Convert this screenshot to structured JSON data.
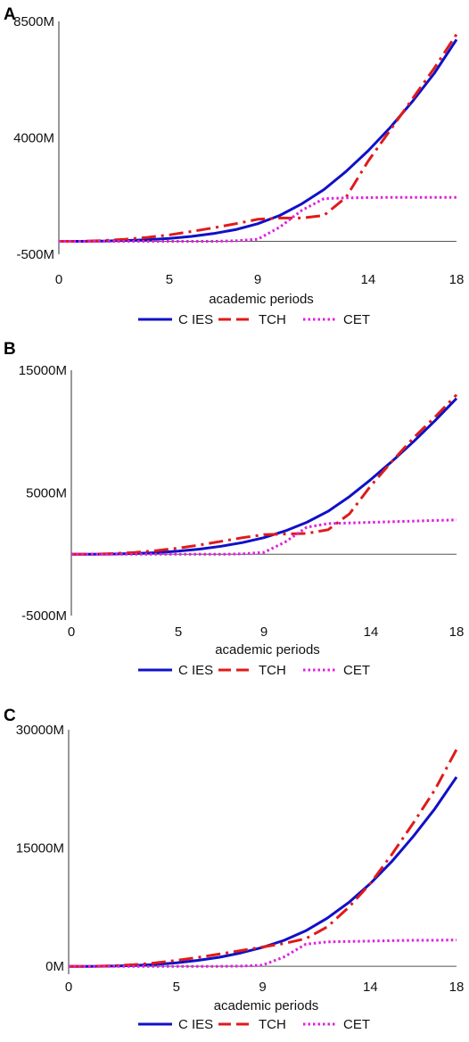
{
  "chart_data": [
    {
      "panel": "A",
      "type": "line",
      "xlabel": "academic periods",
      "ylabel": "",
      "xlim": [
        0,
        18
      ],
      "ylim": [
        -500,
        8500
      ],
      "xticks": [
        0,
        5,
        9,
        14,
        18
      ],
      "yticks": [
        {
          "value": -500,
          "label": "-500M"
        },
        {
          "value": 4000,
          "label": "4000M"
        },
        {
          "value": 8500,
          "label": "8500M"
        }
      ],
      "legend_position": "bottom",
      "series": [
        {
          "name": "C IES",
          "color": "#1010c8",
          "style": "solid",
          "x": [
            0,
            1,
            2,
            3,
            4,
            5,
            6,
            7,
            8,
            9,
            10,
            11,
            12,
            13,
            14,
            15,
            16,
            17,
            18
          ],
          "values": [
            0,
            0,
            10,
            30,
            60,
            110,
            190,
            300,
            450,
            680,
            1000,
            1450,
            2000,
            2700,
            3500,
            4400,
            5400,
            6500,
            7800
          ]
        },
        {
          "name": "TCH",
          "color": "#e01a1a",
          "style": "dashdot",
          "x": [
            0,
            1,
            2,
            3,
            4,
            5,
            6,
            7,
            8,
            9,
            10,
            11,
            12,
            13,
            14,
            15,
            16,
            17,
            18
          ],
          "values": [
            0,
            0,
            30,
            80,
            150,
            250,
            380,
            520,
            680,
            850,
            900,
            900,
            1000,
            1700,
            3100,
            4300,
            5500,
            6700,
            8000
          ]
        },
        {
          "name": "CET",
          "color": "#e020e0",
          "style": "dotted",
          "x": [
            0,
            1,
            2,
            3,
            4,
            5,
            6,
            7,
            8,
            9,
            10,
            11,
            12,
            13,
            14,
            15,
            16,
            17,
            18
          ],
          "values": [
            0,
            0,
            0,
            0,
            0,
            0,
            0,
            0,
            20,
            80,
            550,
            1200,
            1650,
            1680,
            1690,
            1700,
            1700,
            1700,
            1700
          ]
        }
      ]
    },
    {
      "panel": "B",
      "type": "line",
      "xlabel": "academic periods",
      "ylabel": "",
      "xlim": [
        0,
        18
      ],
      "ylim": [
        -5000,
        15000
      ],
      "xticks": [
        0,
        5,
        9,
        14,
        18
      ],
      "yticks": [
        {
          "value": -5000,
          "label": "-5000M"
        },
        {
          "value": 5000,
          "label": "5000M"
        },
        {
          "value": 15000,
          "label": "15000M"
        }
      ],
      "legend_position": "bottom",
      "series": [
        {
          "name": "C IES",
          "color": "#1010c8",
          "style": "solid",
          "x": [
            0,
            1,
            2,
            3,
            4,
            5,
            6,
            7,
            8,
            9,
            10,
            11,
            12,
            13,
            14,
            15,
            16,
            17,
            18
          ],
          "values": [
            0,
            0,
            20,
            60,
            130,
            250,
            420,
            650,
            950,
            1350,
            1900,
            2600,
            3500,
            4700,
            6100,
            7600,
            9200,
            10900,
            12700
          ]
        },
        {
          "name": "TCH",
          "color": "#e01a1a",
          "style": "dashdot",
          "x": [
            0,
            1,
            2,
            3,
            4,
            5,
            6,
            7,
            8,
            9,
            10,
            11,
            12,
            13,
            14,
            15,
            16,
            17,
            18
          ],
          "values": [
            0,
            0,
            60,
            150,
            300,
            500,
            750,
            1050,
            1350,
            1600,
            1650,
            1700,
            2000,
            3300,
            5600,
            7600,
            9500,
            11200,
            13000
          ]
        },
        {
          "name": "CET",
          "color": "#e020e0",
          "style": "dotted",
          "x": [
            0,
            1,
            2,
            3,
            4,
            5,
            6,
            7,
            8,
            9,
            10,
            11,
            12,
            13,
            14,
            15,
            16,
            17,
            18
          ],
          "values": [
            0,
            0,
            0,
            0,
            0,
            0,
            0,
            0,
            30,
            150,
            1000,
            2200,
            2500,
            2550,
            2600,
            2650,
            2700,
            2750,
            2800
          ]
        }
      ]
    },
    {
      "panel": "C",
      "type": "line",
      "xlabel": "academic periods",
      "ylabel": "",
      "xlim": [
        0,
        18
      ],
      "ylim": [
        -1000,
        30000
      ],
      "xticks": [
        0,
        5,
        9,
        14,
        18
      ],
      "yticks": [
        {
          "value": 0,
          "label": "0M"
        },
        {
          "value": 15000,
          "label": "15000M"
        },
        {
          "value": 30000,
          "label": "30000M"
        }
      ],
      "legend_position": "bottom",
      "series": [
        {
          "name": "C IES",
          "color": "#1010c8",
          "style": "solid",
          "x": [
            0,
            1,
            2,
            3,
            4,
            5,
            6,
            7,
            8,
            9,
            10,
            11,
            12,
            13,
            14,
            15,
            16,
            17,
            18
          ],
          "values": [
            0,
            0,
            30,
            100,
            230,
            450,
            750,
            1150,
            1700,
            2400,
            3300,
            4500,
            6100,
            8100,
            10500,
            13300,
            16500,
            20000,
            24000
          ]
        },
        {
          "name": "TCH",
          "color": "#e01a1a",
          "style": "dashdot",
          "x": [
            0,
            1,
            2,
            3,
            4,
            5,
            6,
            7,
            8,
            9,
            10,
            11,
            12,
            13,
            14,
            15,
            16,
            17,
            18
          ],
          "values": [
            0,
            0,
            60,
            200,
            430,
            750,
            1130,
            1560,
            2000,
            2450,
            2900,
            3500,
            5000,
            7500,
            10500,
            14200,
            18200,
            22400,
            27500
          ]
        },
        {
          "name": "CET",
          "color": "#e020e0",
          "style": "dotted",
          "x": [
            0,
            1,
            2,
            3,
            4,
            5,
            6,
            7,
            8,
            9,
            10,
            11,
            12,
            13,
            14,
            15,
            16,
            17,
            18
          ],
          "values": [
            0,
            0,
            0,
            0,
            0,
            0,
            0,
            0,
            30,
            150,
            1200,
            2800,
            3100,
            3150,
            3200,
            3250,
            3300,
            3300,
            3350
          ]
        }
      ]
    }
  ]
}
